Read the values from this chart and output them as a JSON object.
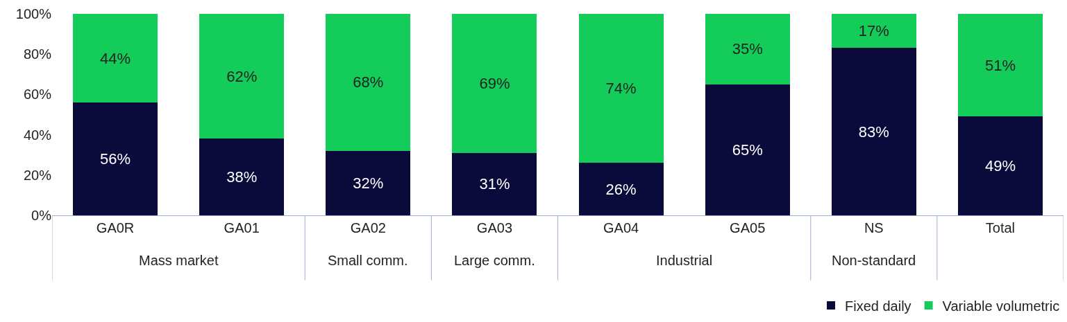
{
  "chart_data": {
    "type": "bar",
    "stacked": true,
    "legend": "bottom right",
    "categories": [
      "GA0R",
      "GA01",
      "GA02",
      "GA03",
      "GA04",
      "GA05",
      "NS",
      "Total"
    ],
    "ylim": [
      0,
      100
    ],
    "yticks": [
      {
        "value": 0,
        "label": "0%"
      },
      {
        "value": 20,
        "label": "20%"
      },
      {
        "value": 40,
        "label": "40%"
      },
      {
        "value": 60,
        "label": "60%"
      },
      {
        "value": 80,
        "label": "80%"
      },
      {
        "value": 100,
        "label": "100%"
      }
    ],
    "series": [
      {
        "name": "Fixed daily",
        "color": "#0b0b3b",
        "values": [
          56,
          38,
          32,
          31,
          26,
          65,
          83,
          49
        ],
        "value_labels": [
          "56%",
          "38%",
          "32%",
          "31%",
          "26%",
          "65%",
          "83%",
          "49%"
        ]
      },
      {
        "name": "Variable volumetric",
        "color": "#14cc5a",
        "values": [
          44,
          62,
          68,
          69,
          74,
          35,
          17,
          51
        ],
        "value_labels": [
          "44%",
          "62%",
          "68%",
          "69%",
          "74%",
          "35%",
          "17%",
          "51%"
        ]
      }
    ],
    "annotations": [
      "Mass market",
      "Small comm.",
      "Large comm.",
      "Industrial",
      "Non-standard"
    ]
  }
}
